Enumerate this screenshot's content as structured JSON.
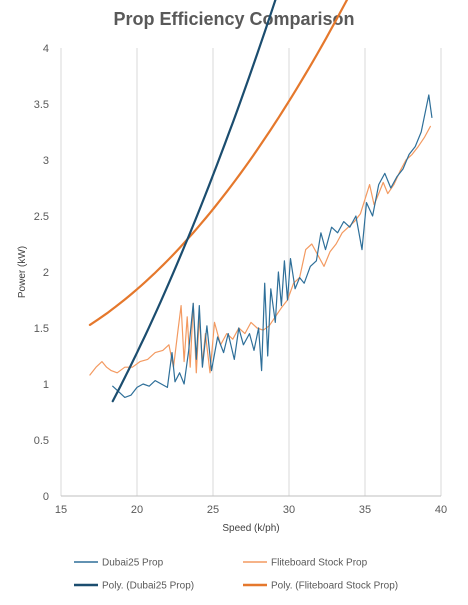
{
  "chart_data": {
    "type": "line",
    "title": "Prop Efficiency Comparison",
    "xlabel": "Speed (k/ph)",
    "ylabel": "Power (kW)",
    "xlim": [
      15,
      40
    ],
    "ylim": [
      0,
      4
    ],
    "xticks": [
      "15",
      "20",
      "25",
      "30",
      "35",
      "40"
    ],
    "yticks": [
      "0",
      "0.5",
      "1",
      "1.5",
      "2",
      "2.5",
      "3",
      "3.5",
      "4"
    ],
    "grid": "vertical",
    "legend": "bottom",
    "colors": {
      "dubai": "#2e6f99",
      "dubai_trend": "#1b4d6f",
      "fliteboard": "#f39a61",
      "fliteboard_trend": "#e5782c",
      "grid": "#d9d9d9",
      "axis": "#bfbfbf"
    },
    "series": [
      {
        "name": "Dubai25 Prop",
        "role": "raw",
        "points": [
          [
            18.4,
            0.98
          ],
          [
            18.8,
            0.93
          ],
          [
            19.2,
            0.88
          ],
          [
            19.6,
            0.9
          ],
          [
            20.0,
            0.97
          ],
          [
            20.4,
            1.0
          ],
          [
            20.8,
            0.98
          ],
          [
            21.2,
            1.03
          ],
          [
            21.6,
            1.0
          ],
          [
            22.0,
            0.97
          ],
          [
            22.3,
            1.28
          ],
          [
            22.5,
            1.02
          ],
          [
            22.8,
            1.1
          ],
          [
            23.1,
            1.0
          ],
          [
            23.4,
            1.3
          ],
          [
            23.7,
            1.72
          ],
          [
            23.9,
            1.22
          ],
          [
            24.1,
            1.7
          ],
          [
            24.3,
            1.15
          ],
          [
            24.6,
            1.52
          ],
          [
            24.9,
            1.12
          ],
          [
            25.3,
            1.42
          ],
          [
            25.7,
            1.28
          ],
          [
            26.0,
            1.45
          ],
          [
            26.4,
            1.22
          ],
          [
            26.7,
            1.5
          ],
          [
            27.0,
            1.35
          ],
          [
            27.4,
            1.45
          ],
          [
            27.7,
            1.3
          ],
          [
            28.0,
            1.5
          ],
          [
            28.2,
            1.12
          ],
          [
            28.4,
            1.9
          ],
          [
            28.6,
            1.25
          ],
          [
            28.8,
            1.85
          ],
          [
            29.1,
            1.55
          ],
          [
            29.3,
            2.0
          ],
          [
            29.5,
            1.7
          ],
          [
            29.7,
            2.1
          ],
          [
            29.9,
            1.75
          ],
          [
            30.1,
            2.12
          ],
          [
            30.4,
            1.85
          ],
          [
            30.7,
            1.95
          ],
          [
            31.0,
            1.9
          ],
          [
            31.4,
            2.05
          ],
          [
            31.8,
            2.1
          ],
          [
            32.1,
            2.35
          ],
          [
            32.4,
            2.2
          ],
          [
            32.8,
            2.4
          ],
          [
            33.2,
            2.35
          ],
          [
            33.6,
            2.45
          ],
          [
            34.0,
            2.4
          ],
          [
            34.4,
            2.5
          ],
          [
            34.8,
            2.2
          ],
          [
            35.1,
            2.62
          ],
          [
            35.5,
            2.5
          ],
          [
            35.9,
            2.78
          ],
          [
            36.3,
            2.88
          ],
          [
            36.7,
            2.75
          ],
          [
            37.1,
            2.85
          ],
          [
            37.5,
            2.92
          ],
          [
            37.9,
            3.05
          ],
          [
            38.3,
            3.12
          ],
          [
            38.7,
            3.25
          ],
          [
            39.0,
            3.45
          ],
          [
            39.2,
            3.58
          ],
          [
            39.4,
            3.38
          ]
        ]
      },
      {
        "name": "Fliteboard Stock Prop",
        "role": "raw",
        "points": [
          [
            16.9,
            1.08
          ],
          [
            17.3,
            1.15
          ],
          [
            17.7,
            1.2
          ],
          [
            18.0,
            1.15
          ],
          [
            18.3,
            1.12
          ],
          [
            18.7,
            1.1
          ],
          [
            19.2,
            1.15
          ],
          [
            19.7,
            1.15
          ],
          [
            20.2,
            1.2
          ],
          [
            20.7,
            1.22
          ],
          [
            21.2,
            1.28
          ],
          [
            21.7,
            1.3
          ],
          [
            22.1,
            1.35
          ],
          [
            22.4,
            1.15
          ],
          [
            22.7,
            1.48
          ],
          [
            22.9,
            1.7
          ],
          [
            23.1,
            1.2
          ],
          [
            23.3,
            1.6
          ],
          [
            23.5,
            1.15
          ],
          [
            23.7,
            1.72
          ],
          [
            23.9,
            1.1
          ],
          [
            24.1,
            1.6
          ],
          [
            24.3,
            1.18
          ],
          [
            24.5,
            1.45
          ],
          [
            24.8,
            1.1
          ],
          [
            25.1,
            1.55
          ],
          [
            25.5,
            1.35
          ],
          [
            25.9,
            1.45
          ],
          [
            26.3,
            1.4
          ],
          [
            26.7,
            1.5
          ],
          [
            27.1,
            1.45
          ],
          [
            27.5,
            1.55
          ],
          [
            27.9,
            1.5
          ],
          [
            28.3,
            1.48
          ],
          [
            28.7,
            1.52
          ],
          [
            29.1,
            1.6
          ],
          [
            29.5,
            1.68
          ],
          [
            29.9,
            1.75
          ],
          [
            30.3,
            1.9
          ],
          [
            30.7,
            1.95
          ],
          [
            31.1,
            2.2
          ],
          [
            31.5,
            2.25
          ],
          [
            31.9,
            2.15
          ],
          [
            32.3,
            2.05
          ],
          [
            32.7,
            2.18
          ],
          [
            33.1,
            2.25
          ],
          [
            33.5,
            2.35
          ],
          [
            33.9,
            2.4
          ],
          [
            34.3,
            2.45
          ],
          [
            34.7,
            2.52
          ],
          [
            35.0,
            2.65
          ],
          [
            35.3,
            2.78
          ],
          [
            35.6,
            2.6
          ],
          [
            35.9,
            2.7
          ],
          [
            36.2,
            2.8
          ],
          [
            36.5,
            2.7
          ],
          [
            36.9,
            2.78
          ],
          [
            37.3,
            2.9
          ],
          [
            37.7,
            3.0
          ],
          [
            38.1,
            3.05
          ],
          [
            38.5,
            3.12
          ],
          [
            38.9,
            3.2
          ],
          [
            39.3,
            3.3
          ]
        ]
      },
      {
        "name": "Poly. (Dubai25 Prop)",
        "role": "trend",
        "fit_range": [
          18.4,
          39.5
        ],
        "coefficients": [
          0.007,
          0.002,
          -1.5606
        ]
      },
      {
        "name": "Poly. (Fliteboard Stock Prop)",
        "role": "trend",
        "fit_range": [
          16.9,
          39.5
        ],
        "coefficients": [
          0.005,
          -0.082,
          1.4854
        ]
      }
    ]
  }
}
